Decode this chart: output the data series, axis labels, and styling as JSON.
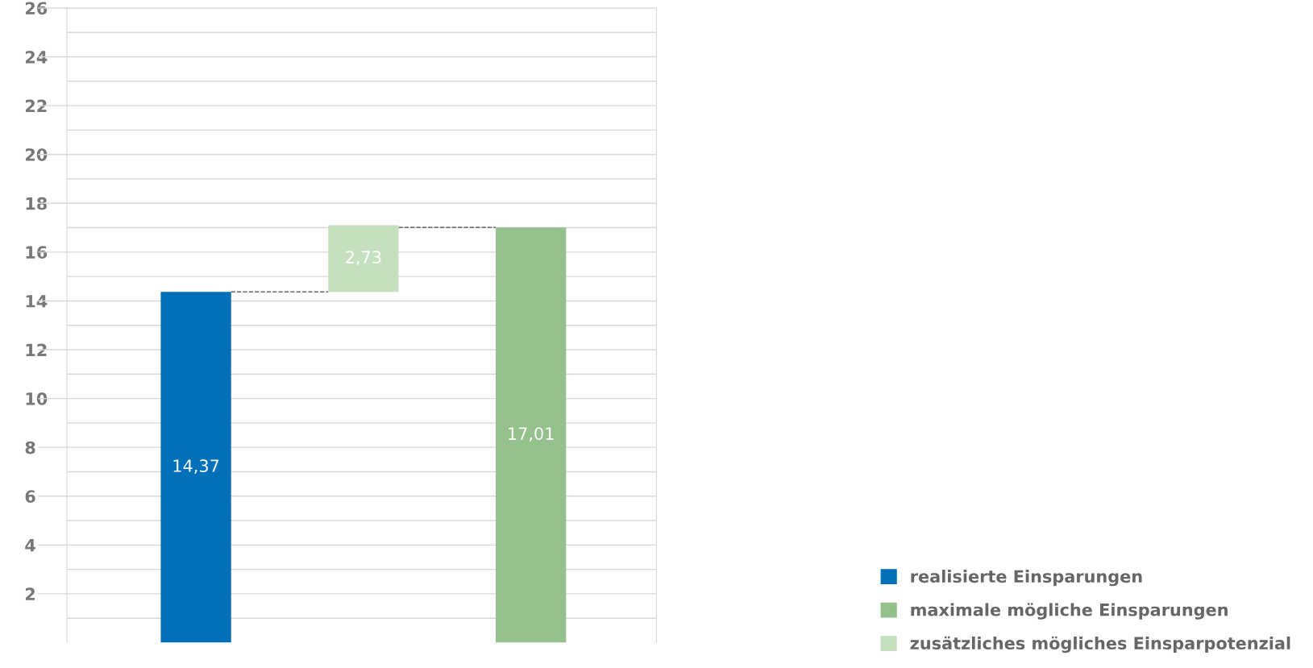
{
  "chart_data": {
    "type": "bar",
    "categories": [
      null,
      null,
      null
    ],
    "series": [
      {
        "name": "realisierte Einsparungen",
        "color": "#0070b8",
        "values": [
          14.37,
          null,
          null
        ],
        "value_labels": [
          "14,37",
          null,
          null
        ]
      },
      {
        "name": "maximale mögliche Einsparungen",
        "color": "#93c08b",
        "values": [
          null,
          null,
          17.01
        ],
        "value_labels": [
          null,
          null,
          "17,01"
        ]
      },
      {
        "name": "zusätzliches mögliches Einsparpotenzial",
        "color": "#c6e0bf",
        "base": [
          null,
          14.37,
          null
        ],
        "values": [
          null,
          2.73,
          null
        ],
        "value_labels": [
          null,
          "2,73",
          null
        ]
      }
    ],
    "ylim": [
      0,
      26
    ],
    "yticks": [
      {
        "value": 1,
        "label": null
      },
      2,
      {
        "value": 3,
        "label": null
      },
      4,
      {
        "value": 5,
        "label": null
      },
      6,
      {
        "value": 7,
        "label": null
      },
      8,
      {
        "value": 9,
        "label": null
      },
      10,
      {
        "value": 11,
        "label": null
      },
      12,
      {
        "value": 13,
        "label": null
      },
      14,
      {
        "value": 15,
        "label": null
      },
      16,
      {
        "value": 17,
        "label": null
      },
      18,
      {
        "value": 19,
        "label": null
      },
      20,
      {
        "value": 21,
        "label": null
      },
      22,
      {
        "value": 23,
        "label": null
      },
      24,
      {
        "value": 25,
        "label": null
      },
      26
    ],
    "grid": "y",
    "legend": "bottom right"
  }
}
